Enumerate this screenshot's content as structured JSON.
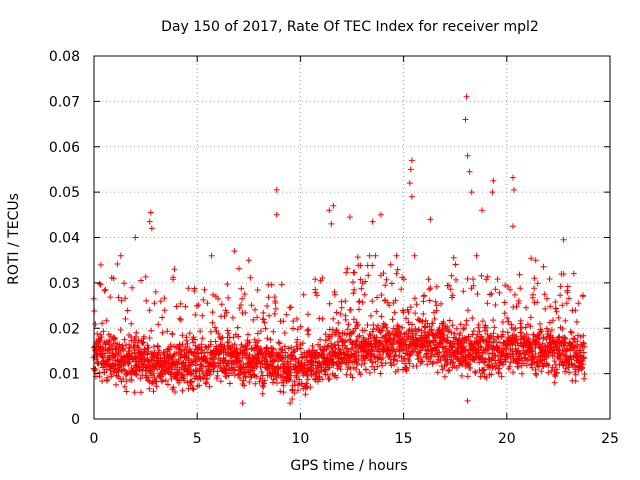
{
  "chart_data": {
    "type": "scatter",
    "title": "Day 150 of 2017, Rate Of TEC Index for receiver mpl2",
    "xlabel": "GPS time / hours",
    "ylabel": "ROTI / TECUs",
    "xlim": [
      0,
      25
    ],
    "ylim": [
      0,
      0.08
    ],
    "x_ticks": [
      0,
      5,
      10,
      15,
      20,
      25
    ],
    "x_tick_labels": [
      "0",
      "5",
      "10",
      "15",
      "20",
      "25"
    ],
    "y_ticks": [
      0,
      0.01,
      0.02,
      0.03,
      0.04,
      0.05,
      0.06,
      0.07,
      0.08
    ],
    "y_tick_labels": [
      "0",
      "0.01",
      "0.02",
      "0.03",
      "0.04",
      "0.05",
      "0.06",
      "0.07",
      "0.08"
    ],
    "grid": true,
    "marker": "+",
    "marker_color": "#ff0000",
    "x_range_hours": [
      0,
      23.75
    ],
    "epoch_step_hours": 0.05,
    "baseline_profile": {
      "hours": [
        0,
        2,
        4,
        6,
        8,
        9,
        10,
        11,
        12,
        14,
        16,
        18,
        20,
        22,
        23.75
      ],
      "median_roti": [
        0.014,
        0.013,
        0.012,
        0.013,
        0.0125,
        0.012,
        0.011,
        0.013,
        0.015,
        0.016,
        0.017,
        0.015,
        0.015,
        0.015,
        0.014
      ]
    },
    "outliers": [
      {
        "x": 18.05,
        "y": 0.071
      },
      {
        "x": 18.0,
        "y": 0.066
      },
      {
        "x": 18.1,
        "y": 0.058
      },
      {
        "x": 15.4,
        "y": 0.057
      },
      {
        "x": 15.35,
        "y": 0.055
      },
      {
        "x": 15.3,
        "y": 0.052
      },
      {
        "x": 15.4,
        "y": 0.049
      },
      {
        "x": 8.85,
        "y": 0.0505
      },
      {
        "x": 8.85,
        "y": 0.045
      },
      {
        "x": 19.35,
        "y": 0.0525
      },
      {
        "x": 19.3,
        "y": 0.05
      },
      {
        "x": 20.3,
        "y": 0.0532
      },
      {
        "x": 20.35,
        "y": 0.0505
      },
      {
        "x": 20.3,
        "y": 0.0425
      },
      {
        "x": 18.2,
        "y": 0.0545
      },
      {
        "x": 18.3,
        "y": 0.05
      },
      {
        "x": 18.8,
        "y": 0.046
      },
      {
        "x": 16.3,
        "y": 0.044
      },
      {
        "x": 2.75,
        "y": 0.0455
      },
      {
        "x": 2.7,
        "y": 0.0435
      },
      {
        "x": 2.8,
        "y": 0.042
      },
      {
        "x": 11.6,
        "y": 0.047
      },
      {
        "x": 11.4,
        "y": 0.046
      },
      {
        "x": 11.5,
        "y": 0.043
      },
      {
        "x": 12.4,
        "y": 0.0445
      },
      {
        "x": 13.9,
        "y": 0.045
      },
      {
        "x": 13.5,
        "y": 0.0435
      },
      {
        "x": 22.75,
        "y": 0.0395
      },
      {
        "x": 6.8,
        "y": 0.037
      },
      {
        "x": 7.5,
        "y": 0.035
      },
      {
        "x": 1.3,
        "y": 0.036
      },
      {
        "x": 2.0,
        "y": 0.04
      },
      {
        "x": 3.9,
        "y": 0.033
      },
      {
        "x": 5.7,
        "y": 0.036
      },
      {
        "x": 21.4,
        "y": 0.035
      },
      {
        "x": 7.2,
        "y": 0.0035
      },
      {
        "x": 9.5,
        "y": 0.0035
      },
      {
        "x": 18.1,
        "y": 0.004
      }
    ]
  }
}
